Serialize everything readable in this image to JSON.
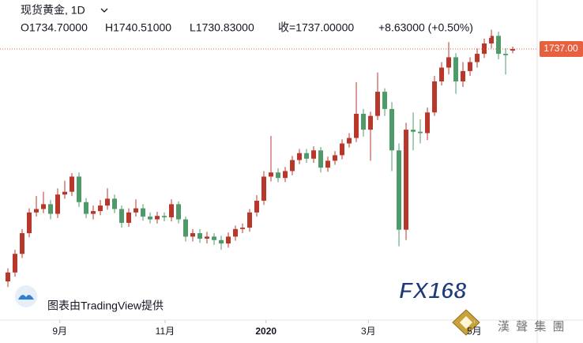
{
  "chart_data": {
    "type": "candlestick",
    "title": "现货黄金, 1D",
    "legend_values": [
      "O1734.70000",
      "H1740.51000",
      "L1730.83000",
      "收=1737.00000",
      "+8.63000 (+0.50%)"
    ],
    "up_color": "#b8372b",
    "down_color": "#4f9a6a",
    "grid": false,
    "open": [
      1400,
      1413,
      1440,
      1470,
      1500,
      1505,
      1512,
      1498,
      1526,
      1530,
      1552,
      1515,
      1498,
      1502,
      1510,
      1520,
      1505,
      1485,
      1500,
      1506,
      1494,
      1490,
      1495,
      1493,
      1512,
      1490,
      1465,
      1470,
      1462,
      1465,
      1460,
      1455,
      1465,
      1476,
      1478,
      1500,
      1517,
      1552,
      1558,
      1550,
      1560,
      1576,
      1586,
      1578,
      1590,
      1565,
      1575,
      1583,
      1600,
      1608,
      1643,
      1620,
      1640,
      1675,
      1650,
      1590,
      1475,
      1620,
      1617,
      1615,
      1645,
      1690,
      1710,
      1725,
      1690,
      1705,
      1718,
      1730,
      1745,
      1756,
      1730,
      1734.7
    ],
    "high": [
      1419,
      1446,
      1476,
      1506,
      1524,
      1530,
      1518,
      1535,
      1546,
      1557,
      1558,
      1521,
      1510,
      1518,
      1535,
      1526,
      1510,
      1506,
      1519,
      1512,
      1500,
      1501,
      1500,
      1519,
      1516,
      1494,
      1476,
      1476,
      1472,
      1470,
      1466,
      1471,
      1481,
      1484,
      1505,
      1525,
      1560,
      1611,
      1564,
      1566,
      1582,
      1592,
      1592,
      1596,
      1595,
      1581,
      1589,
      1606,
      1615,
      1689,
      1650,
      1646,
      1703,
      1680,
      1660,
      1600,
      1630,
      1645,
      1635,
      1652,
      1698,
      1718,
      1747,
      1731,
      1718,
      1725,
      1738,
      1752,
      1765,
      1762,
      1738,
      1740.51
    ],
    "low": [
      1392,
      1407,
      1434,
      1464,
      1494,
      1499,
      1490,
      1492,
      1520,
      1524,
      1508,
      1492,
      1490,
      1496,
      1504,
      1499,
      1478,
      1479,
      1494,
      1488,
      1484,
      1484,
      1487,
      1487,
      1484,
      1458,
      1458,
      1456,
      1455,
      1453,
      1446,
      1449,
      1459,
      1470,
      1472,
      1494,
      1511,
      1545,
      1544,
      1544,
      1554,
      1570,
      1572,
      1572,
      1558,
      1559,
      1569,
      1577,
      1594,
      1602,
      1610,
      1575,
      1634,
      1640,
      1560,
      1451,
      1460,
      1590,
      1600,
      1605,
      1640,
      1684,
      1700,
      1672,
      1682,
      1698,
      1710,
      1724,
      1738,
      1722,
      1700,
      1730.83
    ],
    "close": [
      1413,
      1440,
      1470,
      1500,
      1505,
      1512,
      1498,
      1526,
      1530,
      1552,
      1515,
      1498,
      1502,
      1510,
      1520,
      1505,
      1485,
      1500,
      1506,
      1494,
      1490,
      1495,
      1493,
      1512,
      1490,
      1465,
      1470,
      1462,
      1465,
      1460,
      1455,
      1465,
      1476,
      1478,
      1500,
      1517,
      1552,
      1558,
      1550,
      1560,
      1576,
      1586,
      1578,
      1590,
      1565,
      1575,
      1583,
      1600,
      1608,
      1643,
      1620,
      1640,
      1675,
      1650,
      1590,
      1475,
      1620,
      1617,
      1615,
      1645,
      1690,
      1710,
      1725,
      1690,
      1705,
      1718,
      1730,
      1745,
      1756,
      1730,
      1728,
      1737
    ],
    "xlim": [
      -1.11,
      74.44
    ],
    "xticks": [
      {
        "value": 7.3,
        "label": "9月"
      },
      {
        "value": 22.1,
        "label": "11月"
      },
      {
        "value": 36.3,
        "label": "2020"
      },
      {
        "value": 50.7,
        "label": "3月"
      },
      {
        "value": 65.6,
        "label": "5月"
      }
    ],
    "ylim": [
      1344,
      1808
    ],
    "last_price": {
      "value": 1737,
      "label": "1737.00"
    },
    "last_price_color": "#e8613f",
    "watermark": "图表由TradingView提供",
    "logo": "FX168",
    "brand": "漢 聲 集 團"
  }
}
